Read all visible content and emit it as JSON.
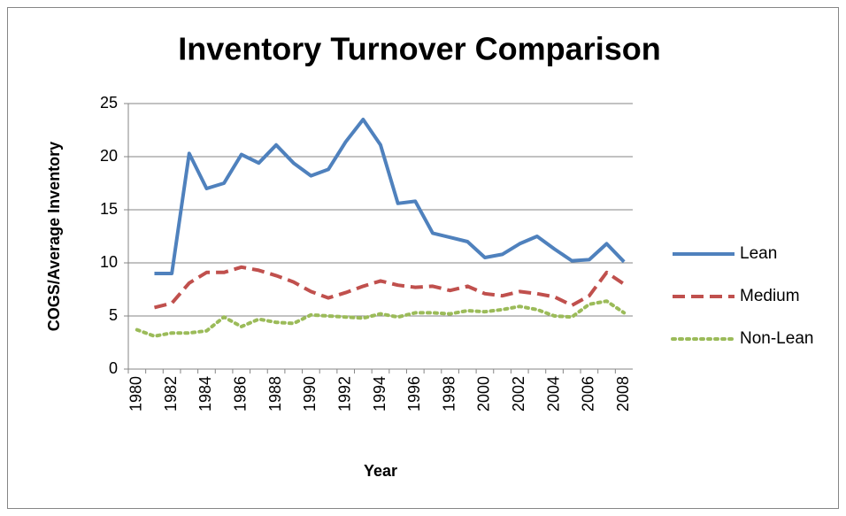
{
  "chart_data": {
    "type": "line",
    "title": "Inventory Turnover Comparison",
    "x_label": "Year",
    "y_label": "COGS/Average Inventory",
    "categories": [
      "1980",
      null,
      "1982",
      null,
      "1984",
      null,
      "1986",
      null,
      "1988",
      null,
      "1990",
      null,
      "1992",
      null,
      "1994",
      null,
      "1996",
      null,
      "1998",
      null,
      "2000",
      null,
      "2002",
      null,
      "2004",
      null,
      "2006",
      null,
      "2008"
    ],
    "series": [
      {
        "name": "Lean",
        "color": "#4f81bd",
        "style": "solid",
        "values": [
          null,
          9.0,
          9.0,
          20.3,
          17.0,
          17.5,
          20.2,
          19.4,
          21.1,
          19.4,
          18.2,
          18.8,
          21.4,
          23.5,
          21.1,
          15.6,
          15.8,
          12.8,
          12.4,
          12.0,
          10.5,
          10.8,
          11.8,
          12.5,
          11.3,
          10.2,
          10.3,
          11.8,
          10.1
        ]
      },
      {
        "name": "Medium",
        "color": "#c0504d",
        "style": "dashed",
        "values": [
          null,
          5.8,
          6.2,
          8.1,
          9.1,
          9.1,
          9.6,
          9.3,
          8.8,
          8.2,
          7.3,
          6.7,
          7.2,
          7.8,
          8.3,
          7.9,
          7.7,
          7.8,
          7.4,
          7.8,
          7.1,
          6.9,
          7.3,
          7.1,
          6.8,
          6.0,
          6.9,
          9.1,
          8.0
        ]
      },
      {
        "name": "Non-Lean",
        "color": "#9bbb59",
        "style": "dotted",
        "values": [
          3.7,
          3.1,
          3.4,
          3.4,
          3.6,
          4.9,
          4.0,
          4.7,
          4.4,
          4.3,
          5.1,
          5.0,
          4.9,
          4.8,
          5.2,
          4.9,
          5.3,
          5.3,
          5.2,
          5.5,
          5.4,
          5.6,
          5.9,
          5.6,
          5.0,
          4.9,
          6.1,
          6.4,
          5.3
        ]
      }
    ],
    "ylim": [
      0,
      25
    ],
    "yticks": [
      0,
      5,
      10,
      15,
      20,
      25
    ],
    "grid": true,
    "legend": "right"
  }
}
